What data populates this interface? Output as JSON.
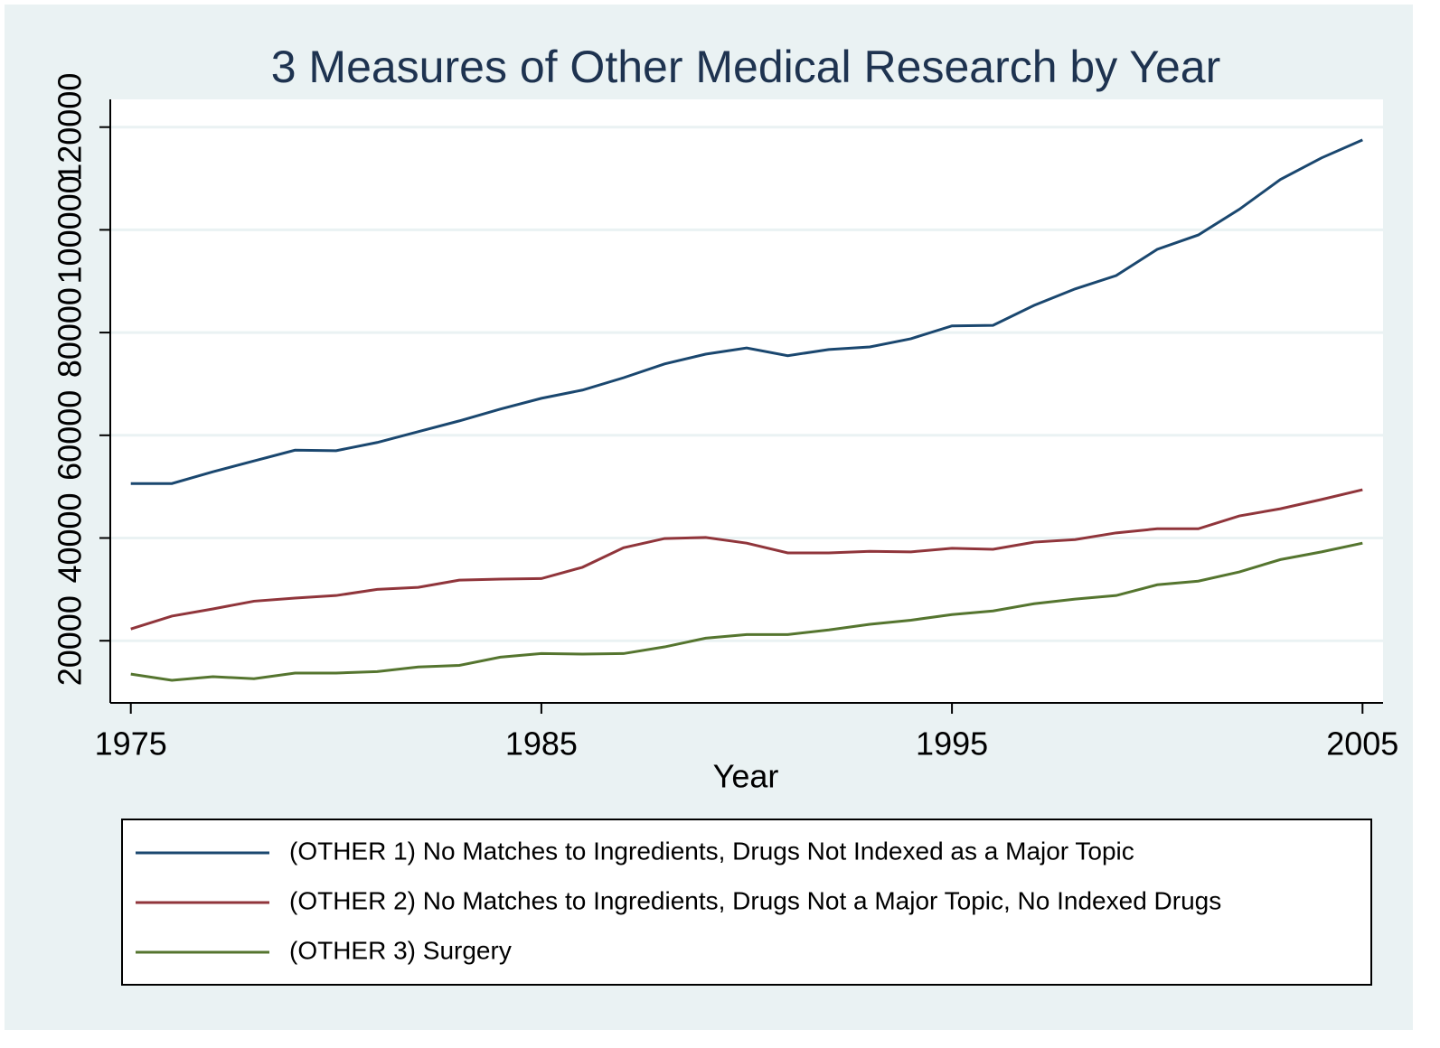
{
  "chart_data": {
    "type": "line",
    "title": "3 Measures of Other Medical Research by Year",
    "x_label": "Year",
    "x": [
      1975,
      1976,
      1977,
      1978,
      1979,
      1980,
      1981,
      1982,
      1983,
      1984,
      1985,
      1986,
      1987,
      1988,
      1989,
      1990,
      1991,
      1992,
      1993,
      1994,
      1995,
      1996,
      1997,
      1998,
      1999,
      2000,
      2001,
      2002,
      2003,
      2004,
      2005
    ],
    "series": [
      {
        "name": "(OTHER 1) No Matches to Ingredients, Drugs Not Indexed as a Major Topic",
        "color": "#1a476f",
        "values": [
          50600,
          50600,
          52900,
          55000,
          57100,
          57000,
          58600,
          60700,
          62800,
          65100,
          67200,
          68800,
          71200,
          73900,
          75800,
          77000,
          75500,
          76700,
          77200,
          78800,
          81300,
          81400,
          85300,
          88500,
          91100,
          96200,
          99000,
          104000,
          109800,
          114000,
          117500
        ]
      },
      {
        "name": "(OTHER 2) No Matches to Ingredients, Drugs Not a Major Topic, No Indexed Drugs",
        "color": "#90353b",
        "values": [
          22300,
          24800,
          26200,
          27700,
          28300,
          28800,
          30000,
          30400,
          31800,
          32000,
          32100,
          34300,
          38100,
          39900,
          40100,
          39000,
          37100,
          37100,
          37400,
          37300,
          38000,
          37800,
          39200,
          39700,
          41000,
          41800,
          41800,
          44300,
          45700,
          47500,
          49400
        ]
      },
      {
        "name": "(OTHER 3) Surgery",
        "color": "#55752f",
        "values": [
          13500,
          12300,
          13000,
          12600,
          13700,
          13700,
          14000,
          14900,
          15200,
          16800,
          17500,
          17400,
          17500,
          18800,
          20500,
          21200,
          21200,
          22100,
          23200,
          24000,
          25100,
          25800,
          27200,
          28100,
          28800,
          30900,
          31600,
          33400,
          35800,
          37300,
          39000
        ]
      }
    ],
    "xlim": [
      1974.5,
      2005.5
    ],
    "xticks": [
      1975,
      1985,
      1995,
      2005
    ],
    "ylim": [
      7900,
      125400
    ],
    "yticks": [
      20000,
      40000,
      60000,
      80000,
      100000,
      120000
    ],
    "grid": true,
    "legend": "bottom"
  }
}
